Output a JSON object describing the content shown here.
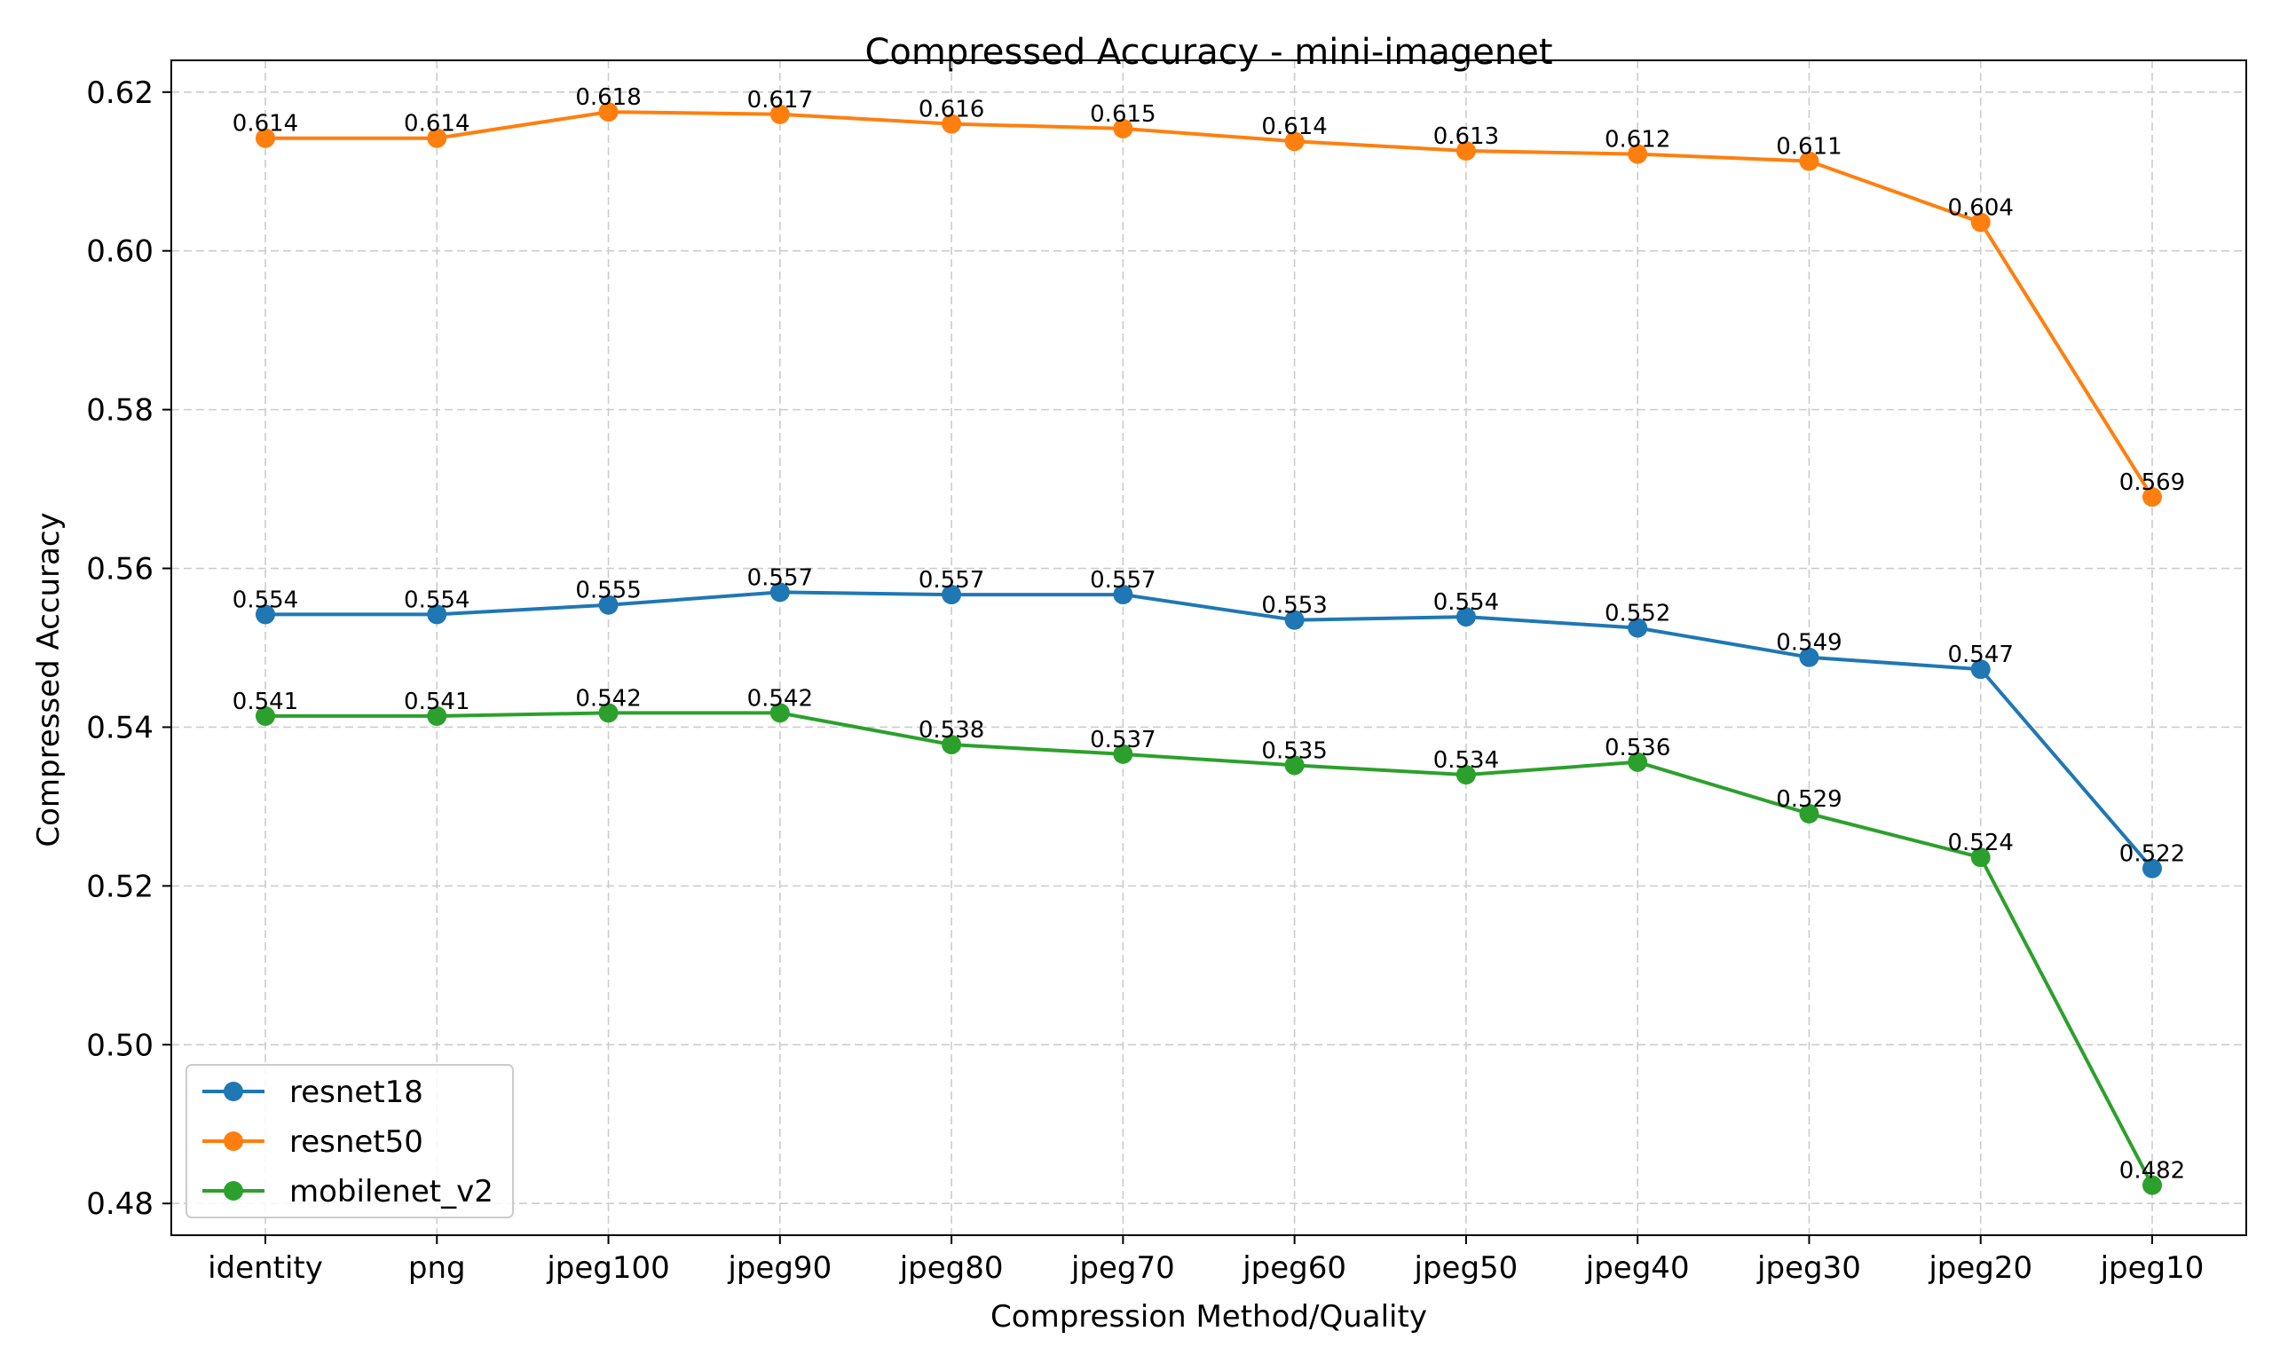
{
  "chart_data": {
    "type": "line",
    "title": "Compressed Accuracy - mini-imagenet",
    "xlabel": "Compression Method/Quality",
    "ylabel": "Compressed Accuracy",
    "categories": [
      "identity",
      "png",
      "jpeg100",
      "jpeg90",
      "jpeg80",
      "jpeg70",
      "jpeg60",
      "jpeg50",
      "jpeg40",
      "jpeg30",
      "jpeg20",
      "jpeg10"
    ],
    "ylim": [
      0.476,
      0.624
    ],
    "yticks": [
      0.48,
      0.5,
      0.52,
      0.54,
      0.56,
      0.58,
      0.6,
      0.62
    ],
    "ytick_labels": [
      "0.48",
      "0.50",
      "0.52",
      "0.54",
      "0.56",
      "0.58",
      "0.60",
      "0.62"
    ],
    "grid": true,
    "legend_position": "lower-left",
    "series": [
      {
        "name": "resnet18",
        "color": "#1f77b4",
        "values": [
          0.5542,
          0.5542,
          0.5554,
          0.557,
          0.5567,
          0.5567,
          0.5535,
          0.5539,
          0.5525,
          0.5488,
          0.5473,
          0.5222
        ],
        "labels": [
          "0.554",
          "0.554",
          "0.555",
          "0.557",
          "0.557",
          "0.557",
          "0.553",
          "0.554",
          "0.552",
          "0.549",
          "0.547",
          "0.522"
        ]
      },
      {
        "name": "resnet50",
        "color": "#ff7f0e",
        "values": [
          0.6142,
          0.6142,
          0.6175,
          0.6172,
          0.616,
          0.6154,
          0.6138,
          0.6126,
          0.6122,
          0.6113,
          0.6036,
          0.569
        ],
        "labels": [
          "0.614",
          "0.614",
          "0.618",
          "0.617",
          "0.616",
          "0.615",
          "0.614",
          "0.613",
          "0.612",
          "0.611",
          "0.604",
          "0.569"
        ]
      },
      {
        "name": "mobilenet_v2",
        "color": "#2ca02c",
        "values": [
          0.5414,
          0.5414,
          0.5418,
          0.5418,
          0.5378,
          0.5366,
          0.5352,
          0.534,
          0.5356,
          0.5291,
          0.5236,
          0.4823
        ],
        "labels": [
          "0.541",
          "0.541",
          "0.542",
          "0.542",
          "0.538",
          "0.537",
          "0.535",
          "0.534",
          "0.536",
          "0.529",
          "0.524",
          "0.482"
        ]
      }
    ]
  }
}
